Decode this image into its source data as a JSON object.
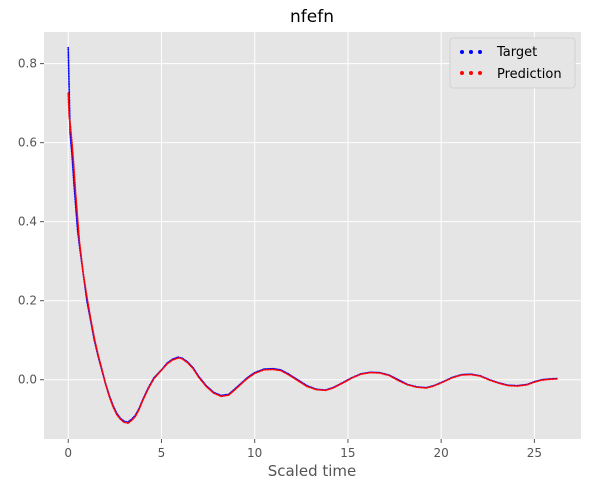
{
  "chart_data": {
    "type": "scatter",
    "title": "nfefn",
    "xlabel": "Scaled time",
    "ylabel": "",
    "xlim": [
      -1.3,
      27.5
    ],
    "ylim": [
      -0.15,
      0.88
    ],
    "xticks": [
      0,
      5,
      10,
      15,
      20,
      25
    ],
    "yticks": [
      -0.0,
      0.2,
      0.4,
      0.6,
      0.8
    ],
    "ytick_labels": [
      "0.0",
      "0.2",
      "0.4",
      "0.6",
      "0.8"
    ],
    "grid": true,
    "legend_position": "top-right",
    "series": [
      {
        "name": "Target",
        "color": "#0000ff",
        "x": [
          0.0,
          0.1,
          0.2,
          0.3,
          0.4,
          0.5,
          0.6,
          0.8,
          1.0,
          1.2,
          1.4,
          1.6,
          1.8,
          2.0,
          2.2,
          2.4,
          2.6,
          2.8,
          3.0,
          3.2,
          3.4,
          3.6,
          3.8,
          4.0,
          4.3,
          4.6,
          5.0,
          5.3,
          5.6,
          5.9,
          6.1,
          6.4,
          6.7,
          7.0,
          7.4,
          7.8,
          8.2,
          8.6,
          8.9,
          9.2,
          9.6,
          10.0,
          10.5,
          11.0,
          11.4,
          11.8,
          12.3,
          12.8,
          13.3,
          13.8,
          14.2,
          14.7,
          15.2,
          15.7,
          16.2,
          16.7,
          17.2,
          17.7,
          18.2,
          18.7,
          19.2,
          19.6,
          20.1,
          20.6,
          21.1,
          21.6,
          22.1,
          22.6,
          23.1,
          23.6,
          24.1,
          24.6,
          25.0,
          25.4,
          25.8,
          26.2
        ],
        "y": [
          0.84,
          0.625,
          0.57,
          0.5,
          0.44,
          0.38,
          0.34,
          0.27,
          0.2,
          0.15,
          0.1,
          0.06,
          0.025,
          -0.01,
          -0.04,
          -0.065,
          -0.085,
          -0.098,
          -0.105,
          -0.107,
          -0.1,
          -0.09,
          -0.073,
          -0.05,
          -0.02,
          0.005,
          0.025,
          0.042,
          0.052,
          0.057,
          0.055,
          0.045,
          0.03,
          0.008,
          -0.015,
          -0.032,
          -0.04,
          -0.037,
          -0.025,
          -0.012,
          0.005,
          0.018,
          0.027,
          0.028,
          0.025,
          0.015,
          0.0,
          -0.015,
          -0.024,
          -0.026,
          -0.02,
          -0.008,
          0.005,
          0.015,
          0.019,
          0.018,
          0.012,
          0.0,
          -0.012,
          -0.018,
          -0.02,
          -0.015,
          -0.005,
          0.006,
          0.013,
          0.014,
          0.01,
          0.0,
          -0.008,
          -0.014,
          -0.015,
          -0.012,
          -0.005,
          0.0,
          0.002,
          0.003
        ]
      },
      {
        "name": "Prediction",
        "color": "#ff0000",
        "x": [
          0.0,
          0.05,
          0.1,
          0.2,
          0.3,
          0.4,
          0.5,
          0.6,
          0.8,
          1.0,
          1.2,
          1.4,
          1.6,
          1.8,
          2.0,
          2.2,
          2.4,
          2.6,
          2.8,
          3.0,
          3.2,
          3.4,
          3.6,
          3.8,
          4.0,
          4.3,
          4.6,
          5.0,
          5.3,
          5.6,
          5.9,
          6.1,
          6.4,
          6.7,
          7.0,
          7.4,
          7.8,
          8.2,
          8.6,
          8.9,
          9.2,
          9.6,
          10.0,
          10.5,
          11.0,
          11.4,
          11.8,
          12.3,
          12.8,
          13.3,
          13.8,
          14.2,
          14.7,
          15.2,
          15.7,
          16.2,
          16.7,
          17.2,
          17.7,
          18.2,
          18.7,
          19.2,
          19.6,
          20.1,
          20.6,
          21.1,
          21.6,
          22.1,
          22.6,
          23.1,
          23.6,
          24.1,
          24.6,
          25.0,
          25.4,
          25.8,
          26.2
        ],
        "y": [
          0.725,
          0.665,
          0.65,
          0.6,
          0.54,
          0.47,
          0.41,
          0.35,
          0.27,
          0.21,
          0.155,
          0.105,
          0.063,
          0.027,
          -0.01,
          -0.042,
          -0.068,
          -0.088,
          -0.1,
          -0.108,
          -0.11,
          -0.103,
          -0.093,
          -0.075,
          -0.052,
          -0.022,
          0.003,
          0.024,
          0.04,
          0.05,
          0.055,
          0.053,
          0.043,
          0.028,
          0.006,
          -0.017,
          -0.034,
          -0.042,
          -0.039,
          -0.027,
          -0.014,
          0.003,
          0.016,
          0.025,
          0.026,
          0.023,
          0.013,
          -0.002,
          -0.017,
          -0.025,
          -0.027,
          -0.021,
          -0.009,
          0.004,
          0.014,
          0.018,
          0.017,
          0.011,
          -0.002,
          -0.013,
          -0.019,
          -0.021,
          -0.016,
          -0.006,
          0.005,
          0.012,
          0.013,
          0.009,
          -0.001,
          -0.009,
          -0.015,
          -0.016,
          -0.013,
          -0.006,
          -0.001,
          0.001,
          0.002
        ]
      }
    ]
  }
}
